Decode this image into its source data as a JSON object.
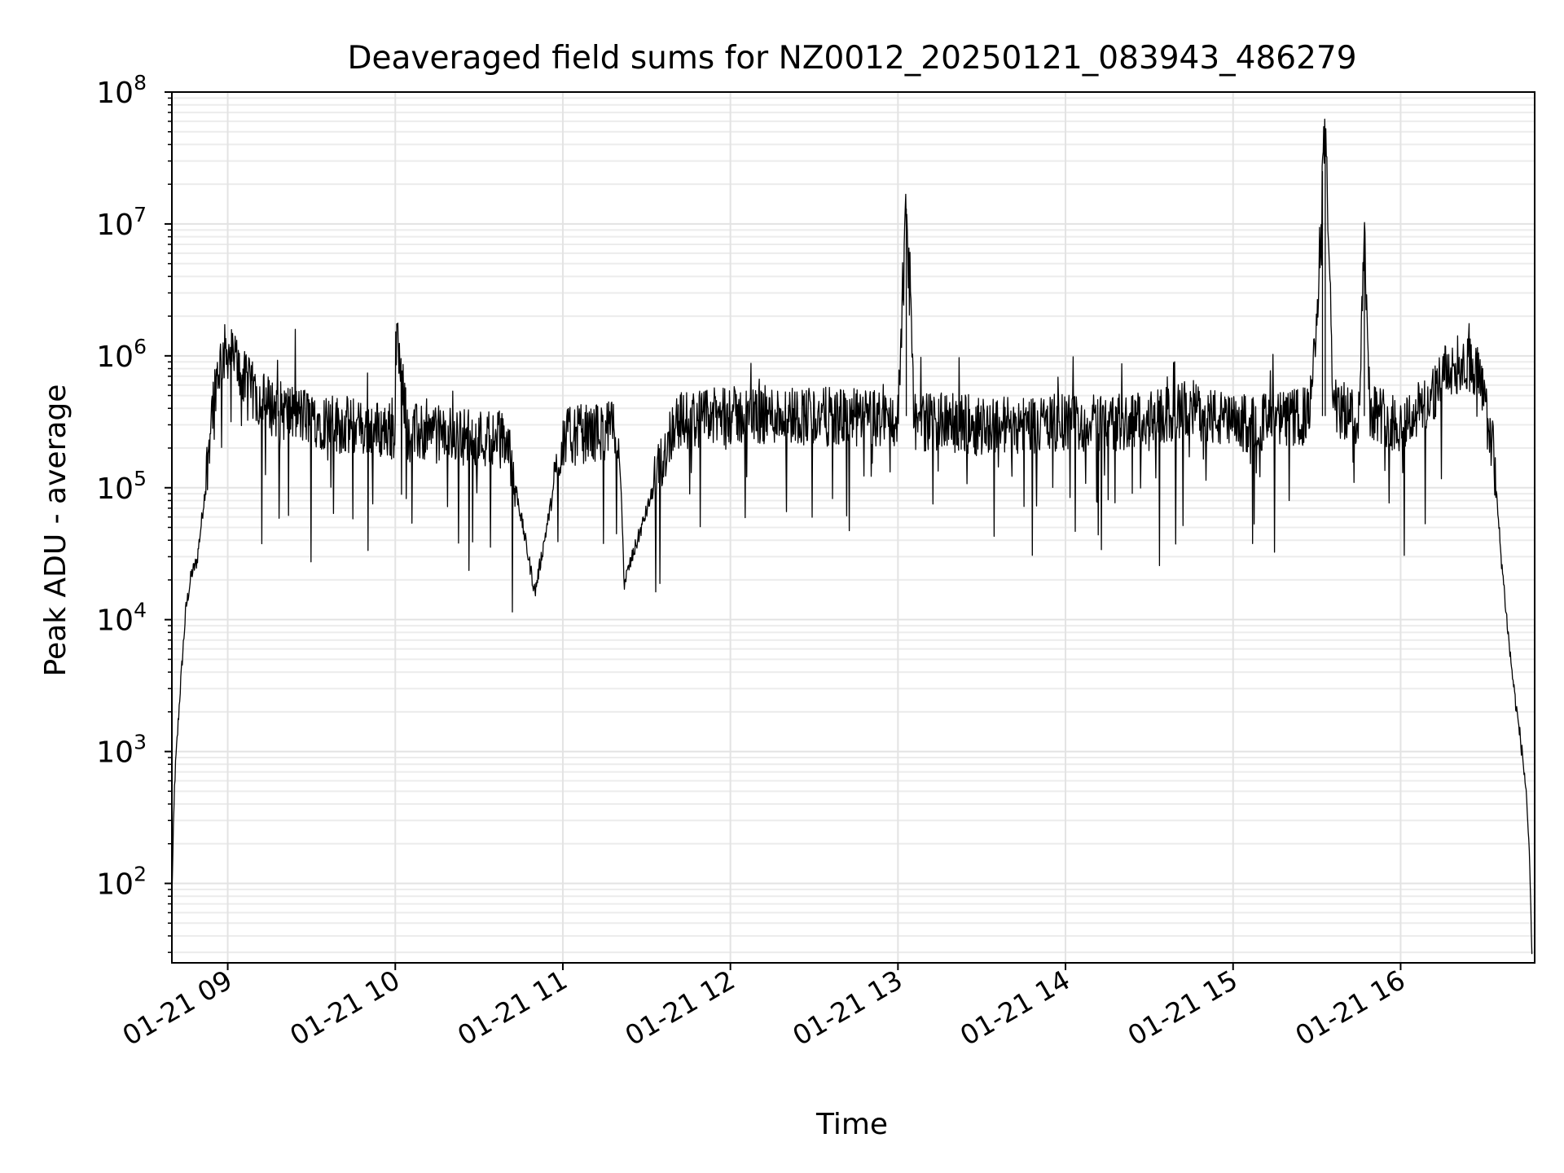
{
  "chart_data": {
    "type": "line",
    "title": "Deaveraged field sums for NZ0012_20250121_083943_486279",
    "xlabel": "Time",
    "ylabel": "Peak ADU - average",
    "yscale": "log",
    "ylim": [
      25,
      100000000
    ],
    "xlim": [
      "01-21 08:40",
      "01-21 16:48"
    ],
    "grid": true,
    "x_ticks": [
      "01-21 09",
      "01-21 10",
      "01-21 11",
      "01-21 12",
      "01-21 13",
      "01-21 14",
      "01-21 15",
      "01-21 16"
    ],
    "y_ticks": [
      {
        "base": "10",
        "exp": "2",
        "value": 100
      },
      {
        "base": "10",
        "exp": "3",
        "value": 1000
      },
      {
        "base": "10",
        "exp": "4",
        "value": 10000
      },
      {
        "base": "10",
        "exp": "5",
        "value": 100000
      },
      {
        "base": "10",
        "exp": "6",
        "value": 1000000
      },
      {
        "base": "10",
        "exp": "7",
        "value": 10000000
      },
      {
        "base": "10",
        "exp": "8",
        "value": 100000000
      }
    ],
    "series": [
      {
        "color": "#000000",
        "points": [
          [
            "01-21 08:40",
            80
          ],
          [
            "01-21 08:41",
            600
          ],
          [
            "01-21 08:43",
            3000
          ],
          [
            "01-21 08:45",
            12000
          ],
          [
            "01-21 08:47",
            22000
          ],
          [
            "01-21 08:49",
            28000
          ],
          [
            "01-21 08:52",
            100000
          ],
          [
            "01-21 08:54",
            350000
          ],
          [
            "01-21 08:56",
            700000
          ],
          [
            "01-21 08:58",
            1000000
          ],
          [
            "01-21 09:00",
            1100000
          ],
          [
            "01-21 09:03",
            900000
          ],
          [
            "01-21 09:06",
            650000
          ],
          [
            "01-21 09:10",
            500000
          ],
          [
            "01-21 09:15",
            420000
          ],
          [
            "01-21 09:20",
            380000
          ],
          [
            "01-21 09:30",
            340000
          ],
          [
            "01-21 09:40",
            300000
          ],
          [
            "01-21 09:50",
            280000
          ],
          [
            "01-21 10:00",
            270000
          ],
          [
            "01-21 10:00",
            1500000
          ],
          [
            "01-21 10:05",
            260000
          ],
          [
            "01-21 10:20",
            250000
          ],
          [
            "01-21 10:40",
            230000
          ],
          [
            "01-21 10:50",
            16000
          ],
          [
            "01-21 11:00",
            240000
          ],
          [
            "01-21 11:20",
            280000
          ],
          [
            "01-21 11:22",
            19000
          ],
          [
            "01-21 11:40",
            320000
          ],
          [
            "01-21 12:00",
            350000
          ],
          [
            "01-21 12:20",
            360000
          ],
          [
            "01-21 12:40",
            340000
          ],
          [
            "01-21 13:00",
            330000
          ],
          [
            "01-21 13:03",
            13000000
          ],
          [
            "01-21 13:06",
            320000
          ],
          [
            "01-21 13:30",
            300000
          ],
          [
            "01-21 14:00",
            310000
          ],
          [
            "01-21 14:30",
            320000
          ],
          [
            "01-21 14:45",
            400000
          ],
          [
            "01-21 15:00",
            300000
          ],
          [
            "01-21 15:15",
            320000
          ],
          [
            "01-21 15:27",
            350000
          ],
          [
            "01-21 15:30",
            1500000
          ],
          [
            "01-21 15:32",
            25000000
          ],
          [
            "01-21 15:33",
            50000000
          ],
          [
            "01-21 15:36",
            400000
          ],
          [
            "01-21 15:45",
            350000
          ],
          [
            "01-21 15:47",
            9000000
          ],
          [
            "01-21 15:49",
            400000
          ],
          [
            "01-21 16:00",
            300000
          ],
          [
            "01-21 16:10",
            450000
          ],
          [
            "01-21 16:15",
            700000
          ],
          [
            "01-21 16:20",
            850000
          ],
          [
            "01-21 16:25",
            900000
          ],
          [
            "01-21 16:28",
            700000
          ],
          [
            "01-21 16:33",
            200000
          ],
          [
            "01-21 16:36",
            30000
          ],
          [
            "01-21 16:39",
            6000
          ],
          [
            "01-21 16:41",
            2500
          ],
          [
            "01-21 16:43",
            1200
          ],
          [
            "01-21 16:45",
            500
          ],
          [
            "01-21 16:46",
            180
          ],
          [
            "01-21 16:47",
            30
          ]
        ]
      }
    ]
  }
}
